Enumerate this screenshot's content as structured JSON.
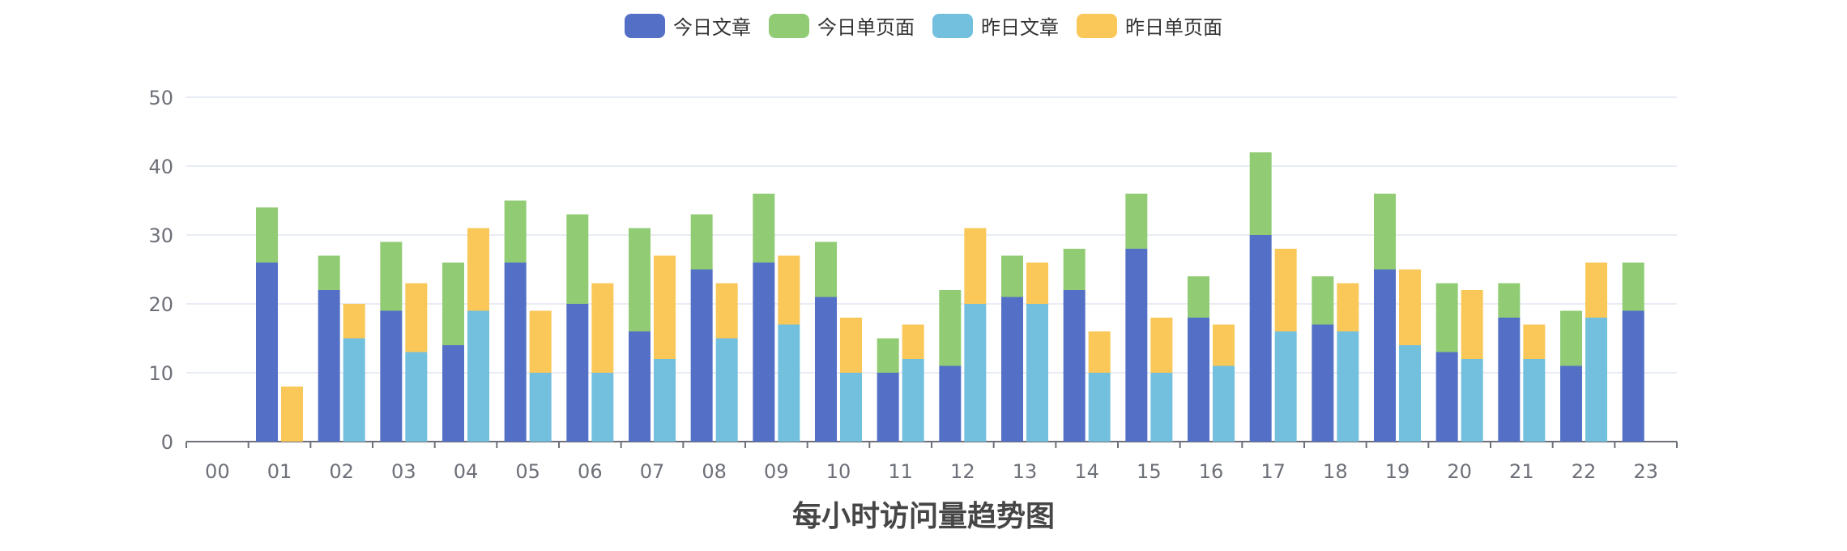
{
  "colors": {
    "today_articles": "#5470c6",
    "today_pages": "#91cc75",
    "yesterday_articles": "#73c0de",
    "yesterday_pages": "#fac858",
    "axis": "#6e7079",
    "grid": "#e0e6f1",
    "label": "#6e7079"
  },
  "legend": [
    {
      "name": "今日文章",
      "color": "#5470c6"
    },
    {
      "name": "今日单页面",
      "color": "#91cc75"
    },
    {
      "name": "昨日文章",
      "color": "#73c0de"
    },
    {
      "name": "昨日单页面",
      "color": "#fac858"
    }
  ],
  "chart_data": {
    "type": "bar",
    "stacked": true,
    "title": "每小时访问量趋势图",
    "categories": [
      "00",
      "01",
      "02",
      "03",
      "04",
      "05",
      "06",
      "07",
      "08",
      "09",
      "10",
      "11",
      "12",
      "13",
      "14",
      "15",
      "16",
      "17",
      "18",
      "19",
      "20",
      "21",
      "22",
      "23"
    ],
    "ylim": [
      0,
      50
    ],
    "yticks": [
      0,
      10,
      20,
      30,
      40,
      50
    ],
    "grid": true,
    "legend_position": "top-center",
    "stacks": [
      {
        "stack": "today",
        "series": [
          {
            "name": "今日文章",
            "values": [
              0,
              26,
              22,
              19,
              14,
              26,
              20,
              16,
              25,
              26,
              21,
              10,
              11,
              21,
              22,
              28,
              18,
              30,
              17,
              25,
              13,
              18,
              11,
              19
            ]
          },
          {
            "name": "今日单页面",
            "values": [
              0,
              8,
              5,
              10,
              12,
              9,
              13,
              15,
              8,
              10,
              8,
              5,
              11,
              6,
              6,
              8,
              6,
              12,
              7,
              11,
              10,
              5,
              8,
              7
            ]
          }
        ]
      },
      {
        "stack": "yesterday",
        "series": [
          {
            "name": "昨日文章",
            "values": [
              0,
              0,
              15,
              13,
              19,
              10,
              10,
              12,
              15,
              17,
              10,
              12,
              20,
              20,
              10,
              10,
              11,
              16,
              16,
              14,
              12,
              12,
              18,
              0
            ]
          },
          {
            "name": "昨日单页面",
            "values": [
              0,
              8,
              5,
              10,
              12,
              9,
              13,
              15,
              8,
              10,
              8,
              5,
              11,
              6,
              6,
              8,
              6,
              12,
              7,
              11,
              10,
              5,
              8,
              0
            ]
          }
        ]
      }
    ]
  }
}
